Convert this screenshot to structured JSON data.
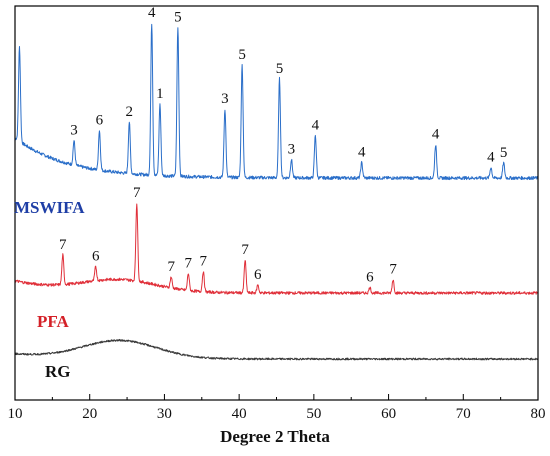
{
  "chart_data": {
    "type": "line",
    "xlabel": "Degree 2 Theta",
    "ylabel": "",
    "xlim": [
      10,
      80
    ],
    "x_ticks": [
      10,
      20,
      30,
      40,
      50,
      60,
      70,
      80
    ],
    "y_axis_visible": false,
    "grid": false,
    "legend": "none",
    "series": [
      {
        "name": "MSWIFA",
        "color": "#2b6fc9",
        "label_color": "#1f3fa6",
        "peaks": [
          {
            "x": 10.6,
            "y": 0.62
          },
          {
            "x": 17.9,
            "y": 0.16,
            "label": "3"
          },
          {
            "x": 21.3,
            "y": 0.26,
            "label": "6"
          },
          {
            "x": 25.3,
            "y": 0.34,
            "label": "2"
          },
          {
            "x": 28.3,
            "y": 1.0,
            "label": "4"
          },
          {
            "x": 29.4,
            "y": 0.47,
            "label": "1"
          },
          {
            "x": 31.8,
            "y": 0.98,
            "label": "5"
          },
          {
            "x": 38.1,
            "y": 0.45,
            "label": "3"
          },
          {
            "x": 40.4,
            "y": 0.74,
            "label": "5"
          },
          {
            "x": 45.4,
            "y": 0.65,
            "label": "5"
          },
          {
            "x": 47.0,
            "y": 0.12,
            "label": "3"
          },
          {
            "x": 50.2,
            "y": 0.28,
            "label": "4"
          },
          {
            "x": 56.4,
            "y": 0.1,
            "label": "4"
          },
          {
            "x": 66.3,
            "y": 0.22,
            "label": "4"
          },
          {
            "x": 73.7,
            "y": 0.07,
            "label": "4"
          },
          {
            "x": 75.4,
            "y": 0.1,
            "label": "5"
          }
        ]
      },
      {
        "name": "PFA",
        "color": "#e0303a",
        "label_color": "#d42027",
        "peaks": [
          {
            "x": 16.4,
            "y": 0.38,
            "label": "7"
          },
          {
            "x": 20.8,
            "y": 0.18,
            "label": "6"
          },
          {
            "x": 26.3,
            "y": 1.0,
            "label": "7"
          },
          {
            "x": 30.9,
            "y": 0.14,
            "label": "7"
          },
          {
            "x": 33.2,
            "y": 0.22,
            "label": "7"
          },
          {
            "x": 35.2,
            "y": 0.26,
            "label": "7"
          },
          {
            "x": 40.8,
            "y": 0.42,
            "label": "7"
          },
          {
            "x": 42.5,
            "y": 0.1,
            "label": "6"
          },
          {
            "x": 57.5,
            "y": 0.07,
            "label": "6"
          },
          {
            "x": 60.6,
            "y": 0.17,
            "label": "7"
          }
        ]
      },
      {
        "name": "RG",
        "color": "#3a3a3a",
        "label_color": "#111111",
        "peaks": []
      }
    ]
  }
}
